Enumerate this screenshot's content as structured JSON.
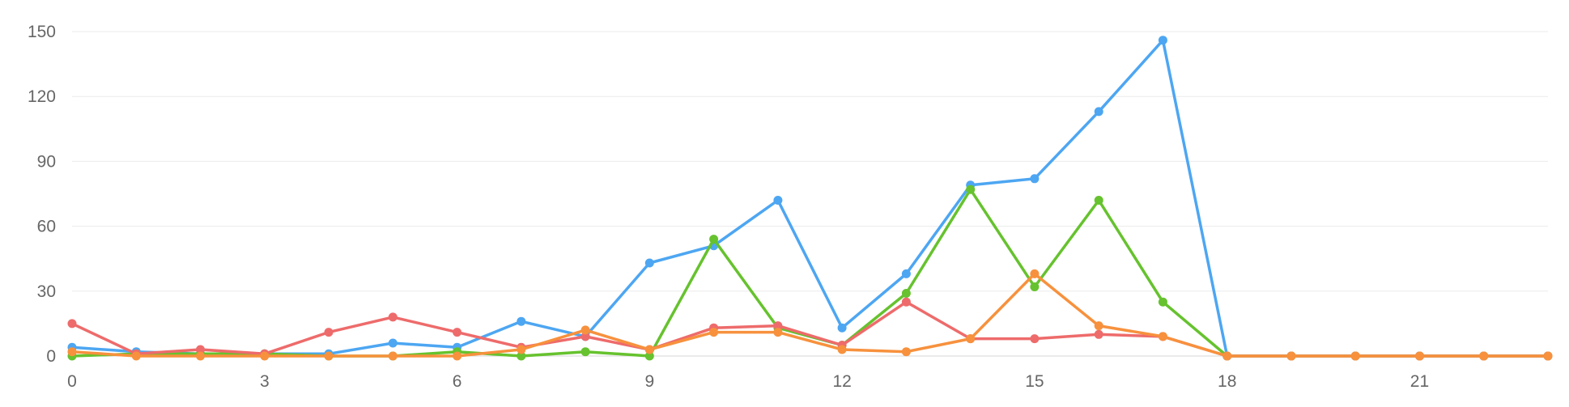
{
  "chart_data": {
    "type": "line",
    "x": [
      0,
      1,
      2,
      3,
      4,
      5,
      6,
      7,
      8,
      9,
      10,
      11,
      12,
      13,
      14,
      15,
      16,
      17,
      18,
      19,
      20,
      21,
      22,
      23
    ],
    "xticks": [
      0,
      3,
      6,
      9,
      12,
      15,
      18,
      21
    ],
    "xtick_labels": [
      "0",
      "3",
      "6",
      "9",
      "12",
      "15",
      "18",
      "21"
    ],
    "xlim": [
      0,
      23
    ],
    "yticks": [
      0,
      30,
      60,
      90,
      120,
      150
    ],
    "ytick_labels": [
      "0",
      "30",
      "60",
      "90",
      "120",
      "150"
    ],
    "ylim": [
      0,
      150
    ],
    "grid": "horizontal",
    "series": [
      {
        "color": "#4da6f2",
        "values": [
          4,
          2,
          1,
          1,
          1,
          6,
          4,
          16,
          9,
          43,
          51,
          72,
          13,
          38,
          79,
          82,
          113,
          146,
          0,
          0,
          0,
          0,
          0,
          0
        ]
      },
      {
        "color": "#66c22e",
        "values": [
          0,
          1,
          1,
          1,
          0,
          0,
          2,
          0,
          2,
          0,
          54,
          13,
          5,
          29,
          77,
          32,
          72,
          25,
          0,
          0,
          0,
          0,
          0,
          0
        ]
      },
      {
        "color": "#ee6b6b",
        "values": [
          15,
          1,
          3,
          1,
          11,
          18,
          11,
          4,
          9,
          3,
          13,
          14,
          5,
          25,
          8,
          8,
          10,
          9,
          0,
          0,
          0,
          0,
          0,
          0
        ]
      },
      {
        "color": "#f7913d",
        "values": [
          2,
          0,
          0,
          0,
          0,
          0,
          0,
          3,
          12,
          3,
          11,
          11,
          3,
          2,
          8,
          38,
          14,
          9,
          0,
          0,
          0,
          0,
          0,
          0
        ]
      }
    ]
  }
}
